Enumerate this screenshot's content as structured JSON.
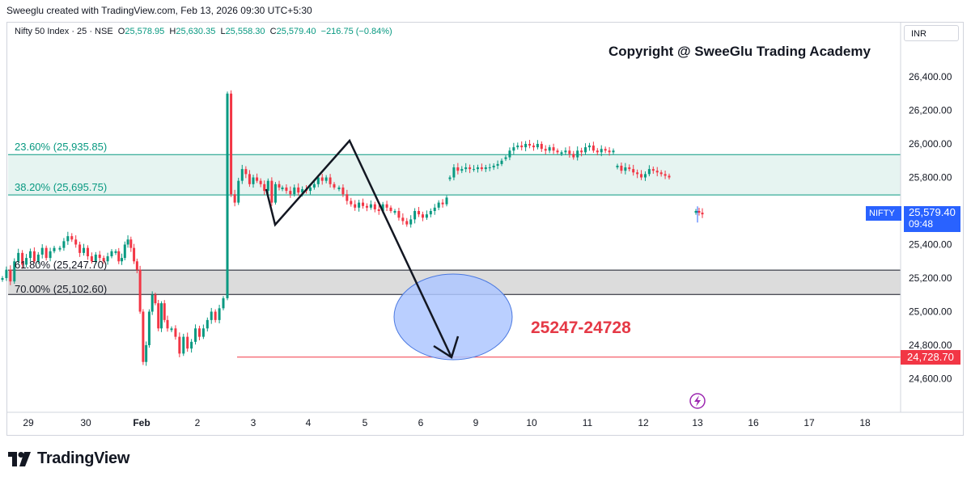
{
  "header": {
    "attribution": "Sweeglu created with TradingView.com, Feb 13, 2026 09:30 UTC+5:30"
  },
  "symbol": {
    "name": "Nifty 50 Index · 25 · NSE",
    "open_key": "O",
    "open": "25,578.95",
    "high_key": "H",
    "high": "25,630.35",
    "low_key": "L",
    "low": "25,558.30",
    "close_key": "C",
    "close": "25,579.40",
    "change": "−216.75 (−0.84%)"
  },
  "currency": "INR",
  "copyright": "Copyright @ SweeGlu Trading Academy",
  "target_text": "25247-24728",
  "ticker_tag": {
    "symbol": "NIFTY",
    "price": "25,579.40",
    "countdown": "09:48"
  },
  "target_tag": "24,728.70",
  "fib_levels": [
    {
      "label": "23.60% (25,935.85)",
      "price": 25935.85,
      "color": "#089981"
    },
    {
      "label": "38.20% (25,695.75)",
      "price": 25695.75,
      "color": "#089981"
    },
    {
      "label": "61.80% (25,247.70)",
      "price": 25247.7,
      "color": "#131722"
    },
    {
      "label": "70.00% (25,102.60)",
      "price": 25102.6,
      "color": "#131722"
    }
  ],
  "logo_text": "TradingView",
  "colors": {
    "up": "#089981",
    "down": "#f23645",
    "zone_green": "#e6f4f1",
    "zone_gray": "#dcdcdc",
    "ellipse": "#aec7ff",
    "accent": "#2962ff",
    "target": "#f23645"
  },
  "chart_data": {
    "type": "candlestick",
    "y_axis": {
      "ticks": [
        26400,
        26200,
        26000,
        25800,
        25600,
        25400,
        25200,
        25000,
        24800,
        24600
      ],
      "tick_labels": [
        "26,400.00",
        "26,200.00",
        "26,000.00",
        "25,800.00",
        "25,600.00",
        "25,400.00",
        "25,200.00",
        "25,000.00",
        "24,800.00",
        "24,600.00"
      ]
    },
    "x_axis": {
      "ticks": [
        "29",
        "30",
        "Feb",
        "2",
        "3",
        "4",
        "5",
        "6",
        "9",
        "10",
        "11",
        "12",
        "13",
        "16",
        "17",
        "18"
      ]
    },
    "last_price": 25579.4,
    "target_price": 24728.7,
    "target_zone": [
      24728,
      25247
    ],
    "sessions": [
      {
        "day": "29",
        "path": [
          25200,
          25250,
          25180,
          25300,
          25350,
          25280,
          25320,
          25360,
          25300,
          25340,
          25380,
          25320,
          25360,
          25380
        ]
      },
      {
        "day": "30",
        "path": [
          25380,
          25420,
          25450,
          25430,
          25400,
          25350,
          25380,
          25330,
          25300,
          25340,
          25320,
          25300,
          25330,
          25360
        ]
      },
      {
        "day": "Feb",
        "path": [
          25360,
          25300,
          25320,
          25400,
          25430,
          25380,
          25300,
          25250,
          25000,
          24700,
          24800,
          25000,
          25100,
          25050,
          24900,
          25050,
          24950,
          24900
        ]
      },
      {
        "day": "2",
        "path": [
          24900,
          24850,
          24750,
          24850,
          24780,
          24820,
          24900,
          24850,
          24900,
          24950,
          25000,
          24950,
          25020,
          25080
        ]
      },
      {
        "day": "3",
        "path": [
          26300,
          25700,
          25650,
          25780,
          25850,
          25820,
          25760,
          25800,
          25780,
          25760,
          25720,
          25780,
          25650,
          25760,
          25740
        ]
      },
      {
        "day": "4",
        "path": [
          25740,
          25720,
          25700,
          25740,
          25710,
          25730,
          25720,
          25740,
          25760,
          25800,
          25780,
          25800,
          25760,
          25740
        ]
      },
      {
        "day": "5",
        "path": [
          25740,
          25700,
          25660,
          25640,
          25620,
          25650,
          25630,
          25620,
          25640,
          25610,
          25600,
          25640,
          25620,
          25600
        ]
      },
      {
        "day": "6",
        "path": [
          25600,
          25560,
          25540,
          25520,
          25550,
          25600,
          25580,
          25560,
          25580,
          25600,
          25620,
          25650,
          25640,
          25680
        ]
      },
      {
        "day": "9",
        "path": [
          25800,
          25860,
          25840,
          25850,
          25860,
          25850,
          25850,
          25860,
          25850,
          25860,
          25860,
          25870,
          25880,
          25900
        ]
      },
      {
        "day": "10",
        "path": [
          25920,
          25960,
          25980,
          25990,
          25980,
          26000,
          25990,
          25980,
          26000,
          25970,
          25960,
          25980,
          25960,
          25950
        ]
      },
      {
        "day": "11",
        "path": [
          25950,
          25960,
          25940,
          25920,
          25960,
          25950,
          25980,
          25990,
          25960,
          25950,
          25970,
          25960,
          25950,
          25960
        ]
      },
      {
        "day": "12",
        "path": [
          25870,
          25840,
          25860,
          25850,
          25830,
          25820,
          25800,
          25820,
          25850,
          25840,
          25830,
          25820,
          25810,
          25800
        ]
      },
      {
        "day": "13",
        "path": [
          25600,
          25590,
          25580
        ]
      }
    ]
  }
}
